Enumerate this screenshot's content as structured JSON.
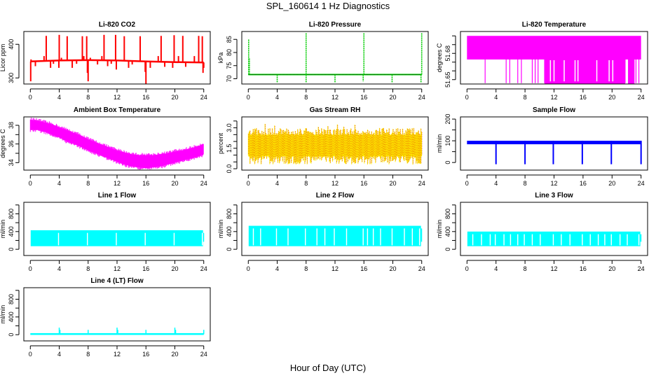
{
  "figure": {
    "title": "SPL_160614  1 Hz Diagnostics",
    "xlabel": "Hour of Day (UTC)"
  },
  "chart_data": [
    {
      "id": "co2",
      "type": "line",
      "title": "Li-820 CO2",
      "ylabel": "Licor ppm",
      "color": "#ff0000",
      "xlim": [
        -0.9,
        24.9
      ],
      "ylim": [
        282,
        438
      ],
      "xticks": [
        0,
        4,
        8,
        12,
        16,
        20,
        24
      ],
      "yticks": [
        300,
        400
      ],
      "ytick_labels": [
        "300",
        "400"
      ],
      "baseline": [
        [
          0,
          349
        ],
        [
          4,
          352
        ],
        [
          8,
          353
        ],
        [
          12,
          352
        ],
        [
          16,
          349
        ],
        [
          20,
          347
        ],
        [
          24,
          346
        ]
      ],
      "spikes": [
        [
          0.05,
          290
        ],
        [
          0.1,
          355
        ],
        [
          0.7,
          335
        ],
        [
          1.9,
          365
        ],
        [
          2.2,
          425
        ],
        [
          2.8,
          330
        ],
        [
          3.2,
          342
        ],
        [
          3.95,
          330
        ],
        [
          4.0,
          428
        ],
        [
          4.3,
          360
        ],
        [
          5.1,
          424
        ],
        [
          5.8,
          330
        ],
        [
          6.4,
          342
        ],
        [
          7.2,
          424
        ],
        [
          7.4,
          365
        ],
        [
          7.8,
          424
        ],
        [
          7.9,
          315
        ],
        [
          8.0,
          290
        ],
        [
          8.3,
          360
        ],
        [
          9.3,
          340
        ],
        [
          9.9,
          365
        ],
        [
          10.2,
          428
        ],
        [
          10.7,
          335
        ],
        [
          11.2,
          342
        ],
        [
          11.8,
          428
        ],
        [
          11.9,
          325
        ],
        [
          13.0,
          424
        ],
        [
          13.6,
          330
        ],
        [
          14.1,
          340
        ],
        [
          15.2,
          424
        ],
        [
          15.9,
          318
        ],
        [
          16.0,
          282
        ],
        [
          16.6,
          330
        ],
        [
          17.7,
          365
        ],
        [
          18.1,
          425
        ],
        [
          18.6,
          333
        ],
        [
          19.7,
          330
        ],
        [
          19.9,
          427
        ],
        [
          20.5,
          365
        ],
        [
          21.1,
          425
        ],
        [
          21.5,
          333
        ],
        [
          22.7,
          365
        ],
        [
          23.3,
          425
        ],
        [
          23.8,
          424
        ],
        [
          23.9,
          315
        ],
        [
          24.0,
          330
        ]
      ]
    },
    {
      "id": "pressure",
      "type": "line",
      "title": "Li-820 Pressure",
      "ylabel": "kPa",
      "color": "#00cc00",
      "xlim": [
        -0.9,
        24.9
      ],
      "ylim": [
        68,
        88
      ],
      "xticks": [
        0,
        4,
        8,
        12,
        16,
        20,
        24
      ],
      "yticks": [
        70,
        75,
        80,
        85
      ],
      "ytick_labels": [
        "70",
        "75",
        "80",
        "85"
      ],
      "baseline_value": 71.6,
      "spikes": [
        [
          0.05,
          85
        ],
        [
          0.15,
          78
        ],
        [
          4.0,
          68.6
        ],
        [
          8.0,
          87.5
        ],
        [
          8.0,
          68.6
        ],
        [
          12.0,
          68.4
        ],
        [
          16.0,
          87.5
        ],
        [
          15.9,
          69
        ],
        [
          19.9,
          68.6
        ],
        [
          24.0,
          87.5
        ],
        [
          23.9,
          68.6
        ]
      ]
    },
    {
      "id": "li820_temp",
      "type": "area",
      "title": "Li-820 Temperature",
      "ylabel": "degrees C",
      "color": "#ff00ff",
      "xlim": [
        -0.9,
        24.9
      ],
      "ylim": [
        51.645,
        51.705
      ],
      "xticks": [
        0,
        4,
        8,
        12,
        16,
        20,
        24
      ],
      "yticks": [
        51.65,
        51.66,
        51.67,
        51.68,
        51.69,
        51.7
      ],
      "ytick_labels": [
        "51.65",
        "",
        "",
        "51.68",
        "",
        ""
      ],
      "band_high": 51.7,
      "band_low": 51.673,
      "dropouts": [
        2.5,
        5.4,
        5.9,
        7.0,
        7.5,
        9.0,
        9.4,
        9.8,
        10.7,
        11.2,
        11.9,
        12.2,
        12.5,
        12.8,
        13.2,
        13.6,
        14.9,
        15.6,
        16.2,
        17.0,
        17.5,
        18.0,
        18.7,
        19.5,
        20.1,
        20.8,
        21.3,
        21.8,
        22.3,
        22.7,
        23.3,
        23.7
      ]
    },
    {
      "id": "ambient_temp",
      "type": "area",
      "title": "Ambient Box Temperature",
      "ylabel": "degrees C",
      "color": "#ff00ff",
      "xlim": [
        -0.9,
        24.9
      ],
      "ylim": [
        33.2,
        38.9
      ],
      "xticks": [
        0,
        4,
        8,
        12,
        16,
        20,
        24
      ],
      "yticks": [
        34,
        35,
        36,
        37,
        38
      ],
      "ytick_labels": [
        "34",
        "",
        "36",
        "",
        "38"
      ],
      "x": [
        0,
        1,
        2,
        3,
        4,
        5,
        6,
        7,
        8,
        9,
        10,
        11,
        12,
        13,
        14,
        15,
        16,
        17,
        18,
        19,
        20,
        21,
        22,
        23,
        24
      ],
      "high": [
        38.6,
        38.5,
        38.3,
        38.1,
        37.8,
        37.5,
        37.2,
        36.9,
        36.5,
        36.2,
        35.9,
        35.6,
        35.3,
        35.1,
        34.9,
        34.8,
        34.8,
        34.8,
        34.9,
        35.0,
        35.2,
        35.3,
        35.5,
        35.7,
        36.0
      ],
      "low": [
        37.5,
        37.5,
        37.3,
        37.0,
        36.7,
        36.3,
        36.0,
        35.7,
        35.3,
        35.0,
        34.7,
        34.4,
        34.1,
        33.8,
        33.6,
        33.5,
        33.4,
        33.5,
        33.6,
        33.8,
        34.0,
        34.2,
        34.4,
        34.6,
        34.9
      ]
    },
    {
      "id": "rh",
      "type": "area",
      "title": "Gas Stream RH",
      "ylabel": "percent",
      "colors": [
        "#ffee00",
        "#dd2200"
      ],
      "xlim": [
        -0.9,
        24.9
      ],
      "ylim": [
        -0.1,
        3.8
      ],
      "xticks": [
        0,
        4,
        8,
        12,
        16,
        20,
        24
      ],
      "yticks": [
        0,
        0.5,
        1.0,
        1.5,
        2.0,
        2.5,
        3.0,
        3.5
      ],
      "ytick_labels": [
        "0.0",
        "",
        "",
        "1.5",
        "",
        "",
        "3.0",
        ""
      ],
      "typical_high": 2.5,
      "typical_low": 0.9,
      "max": 3.6,
      "min": 0.0
    },
    {
      "id": "sample_flow",
      "type": "line",
      "title": "Sample Flow",
      "ylabel": "ml/min",
      "color": "#0000ff",
      "xlim": [
        -0.9,
        24.9
      ],
      "ylim": [
        -35,
        210
      ],
      "xticks": [
        0,
        4,
        8,
        12,
        16,
        20,
        24
      ],
      "yticks": [
        0,
        50,
        100,
        150,
        200
      ],
      "ytick_labels": [
        "0",
        "",
        "100",
        "",
        "200"
      ],
      "baseline_value": 92,
      "dips": [
        4.0,
        8.0,
        11.9,
        15.9,
        19.9,
        24.0
      ]
    },
    {
      "id": "line1",
      "type": "area",
      "title": "Line 1 Flow",
      "ylabel": "ml/min",
      "color": "#00ffff",
      "xlim": [
        -0.9,
        24.9
      ],
      "ylim": [
        -140,
        1060
      ],
      "xticks": [
        0,
        4,
        8,
        12,
        16,
        20,
        24
      ],
      "yticks": [
        0,
        200,
        400,
        600,
        800,
        1000
      ],
      "ytick_labels": [
        "0",
        "",
        "400",
        "",
        "800",
        ""
      ],
      "band_high": 430,
      "band_low": 70,
      "gaps": [
        3.9,
        7.9,
        11.9,
        15.9,
        19.9,
        23.8
      ]
    },
    {
      "id": "line2",
      "type": "area",
      "title": "Line 2 Flow",
      "ylabel": "ml/min",
      "color": "#00ffff",
      "xlim": [
        -0.9,
        24.9
      ],
      "ylim": [
        -140,
        1060
      ],
      "xticks": [
        0,
        4,
        8,
        12,
        16,
        20,
        24
      ],
      "yticks": [
        0,
        200,
        400,
        600,
        800,
        1000
      ],
      "ytick_labels": [
        "0",
        "",
        "400",
        "",
        "800",
        ""
      ],
      "band_high": 530,
      "band_low": 70,
      "gaps": [
        0.7,
        1.7,
        3.9,
        5.5,
        7.9,
        9.5,
        10.6,
        11.9,
        13.6,
        15.9,
        16.5,
        17.3,
        18.3,
        19.9,
        21.6,
        22.7,
        23.7
      ]
    },
    {
      "id": "line3",
      "type": "area",
      "title": "Line 3 Flow",
      "ylabel": "ml/min",
      "color": "#00ffff",
      "xlim": [
        -0.9,
        24.9
      ],
      "ylim": [
        -140,
        1060
      ],
      "xticks": [
        0,
        4,
        8,
        12,
        16,
        20,
        24
      ],
      "yticks": [
        0,
        200,
        400,
        600,
        800,
        1000
      ],
      "ytick_labels": [
        "0",
        "",
        "400",
        "",
        "800",
        ""
      ],
      "band_high": 400,
      "band_low": 70,
      "gaps": [
        0.8,
        2.0,
        3.2,
        3.9,
        5.1,
        6.0,
        7.0,
        7.9,
        9.0,
        10.1,
        11.9,
        13.0,
        14.2,
        15.9,
        17.0,
        18.1,
        19.0,
        19.9,
        21.1,
        22.1,
        23.7
      ]
    },
    {
      "id": "line4",
      "type": "line",
      "title": "Line 4 (LT) Flow",
      "ylabel": "ml/min",
      "color": "#00ffff",
      "xlim": [
        -0.9,
        24.9
      ],
      "ylim": [
        -140,
        1060
      ],
      "xticks": [
        0,
        4,
        8,
        12,
        16,
        20,
        24
      ],
      "yticks": [
        0,
        200,
        400,
        600,
        800,
        1000
      ],
      "ytick_labels": [
        "0",
        "",
        "400",
        "",
        "800",
        ""
      ],
      "baseline_value": 10,
      "spikes": [
        [
          4.0,
          160
        ],
        [
          4.1,
          110
        ],
        [
          8.0,
          110
        ],
        [
          12.0,
          160
        ],
        [
          12.1,
          110
        ],
        [
          16.0,
          110
        ],
        [
          20.0,
          160
        ],
        [
          20.1,
          110
        ],
        [
          24.0,
          110
        ]
      ]
    }
  ]
}
